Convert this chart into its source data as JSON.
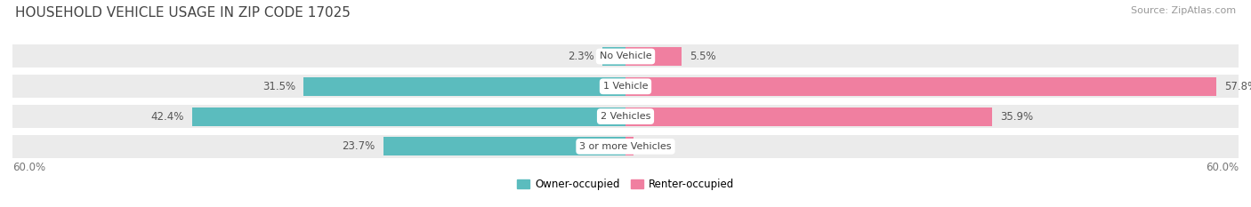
{
  "title": "HOUSEHOLD VEHICLE USAGE IN ZIP CODE 17025",
  "source": "Source: ZipAtlas.com",
  "categories": [
    "No Vehicle",
    "1 Vehicle",
    "2 Vehicles",
    "3 or more Vehicles"
  ],
  "owner_values": [
    2.3,
    31.5,
    42.4,
    23.7
  ],
  "renter_values": [
    5.5,
    57.8,
    35.9,
    0.78
  ],
  "owner_color": "#5bbcbe",
  "renter_color": "#f07fa0",
  "bar_bg_color": "#ebebeb",
  "axis_max": 60.0,
  "bar_height": 0.62,
  "fig_bg_color": "#ffffff",
  "title_fontsize": 11,
  "label_fontsize": 8.5,
  "source_fontsize": 8,
  "category_fontsize": 8,
  "axis_label_fontsize": 8.5
}
